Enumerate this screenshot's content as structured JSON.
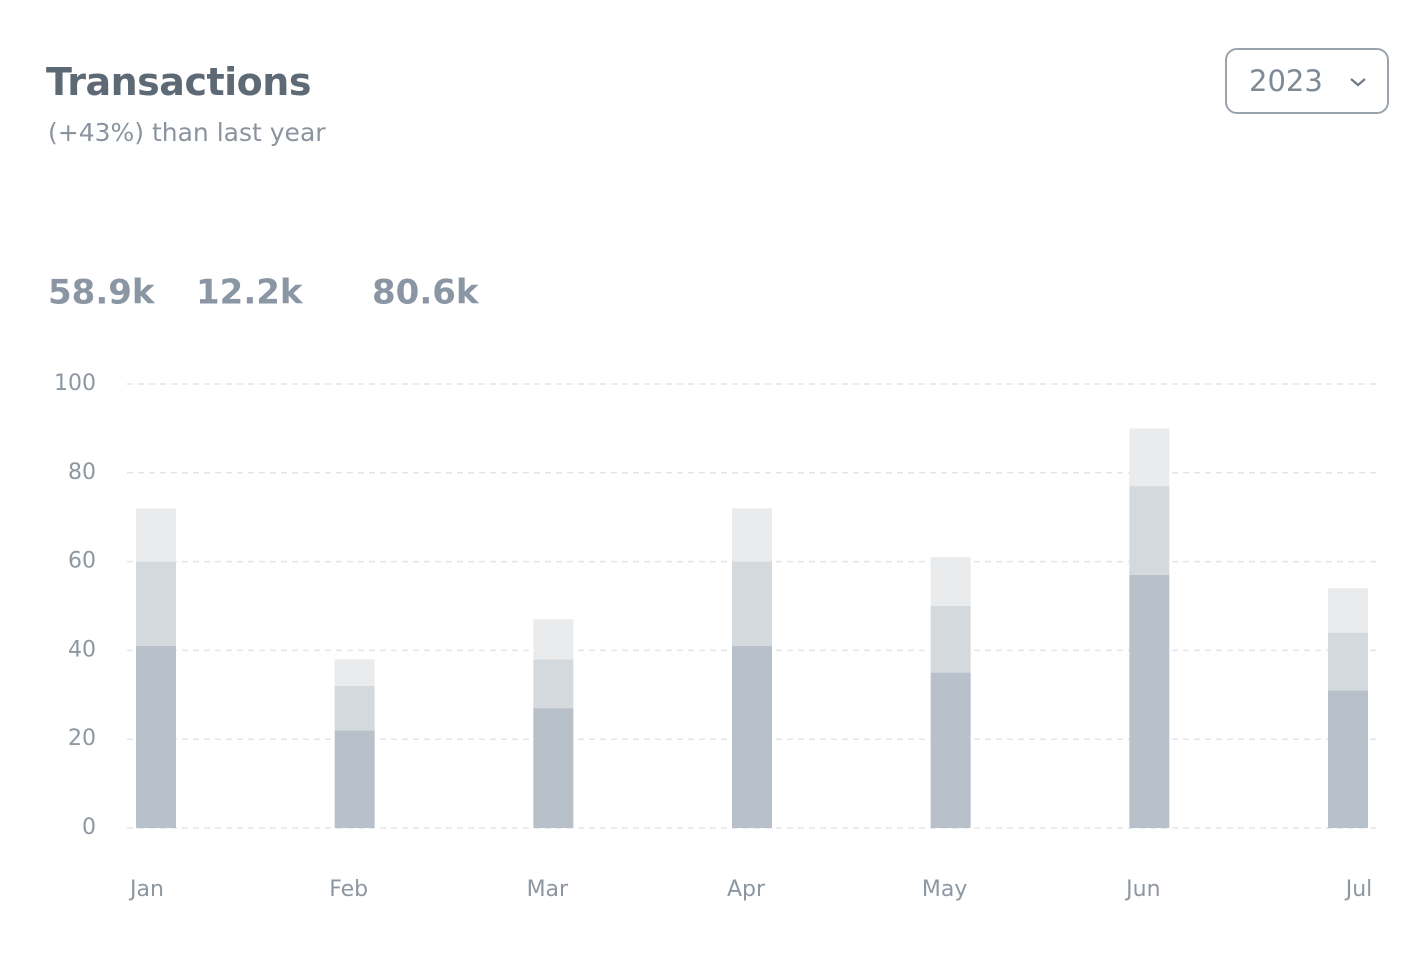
{
  "chart_data": {
    "type": "bar",
    "stacked": true,
    "title": "Transactions",
    "subtitle": "(+43%) than last year",
    "summary": [
      "58.9k",
      "12.2k",
      "80.6k"
    ],
    "categories": [
      "Jan",
      "Feb",
      "Mar",
      "Apr",
      "May",
      "Jun",
      "Jul"
    ],
    "series": [
      {
        "color": "#b8c1ca",
        "values": [
          41,
          22,
          27,
          41,
          35,
          57,
          31
        ]
      },
      {
        "color": "#d4d9de",
        "values": [
          19,
          10,
          11,
          19,
          15,
          20,
          13
        ]
      },
      {
        "color": "#e9ebed",
        "values": [
          12,
          6,
          9,
          12,
          11,
          13,
          10
        ]
      }
    ],
    "ylim": [
      0,
      100
    ],
    "yticks": [
      0,
      20,
      40,
      60,
      80,
      100
    ],
    "grid": true
  },
  "filter": {
    "selected": "2023"
  }
}
